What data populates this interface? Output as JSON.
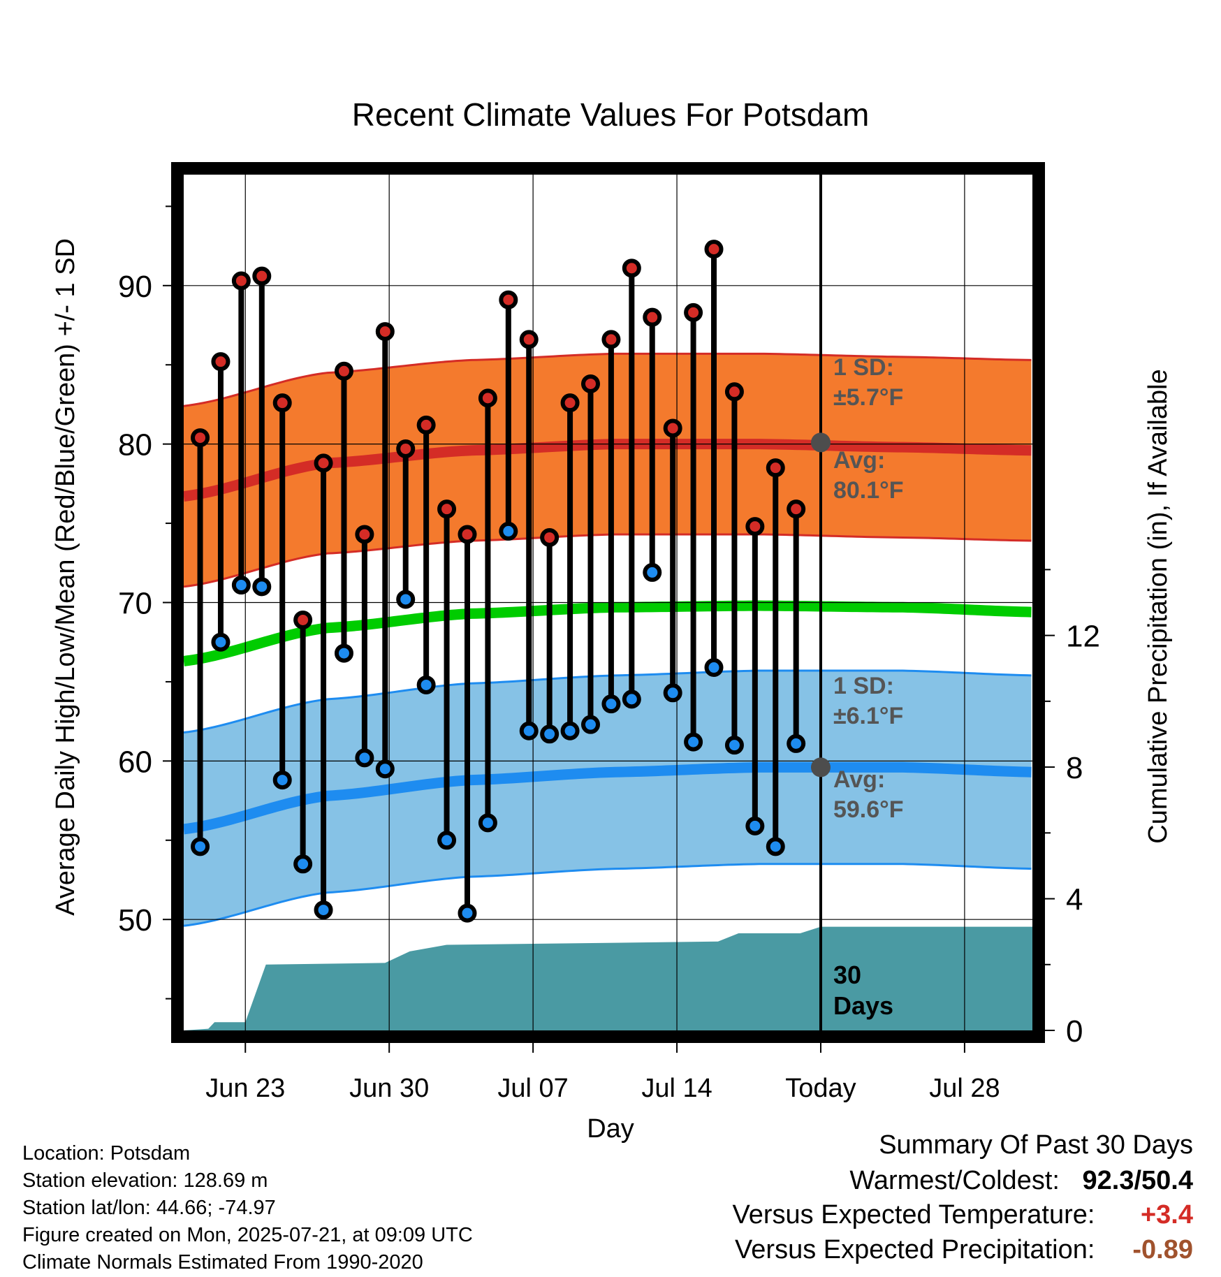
{
  "chart_data": {
    "type": "line",
    "title": "Recent Climate Values For Potsdam",
    "xlabel": "Day",
    "ylabel": "Average Daily High/Low/Mean (Red/Blue/Green) +/- 1 SD",
    "y2label": "Cumulative Precipitation (in), If Available",
    "ylim": [
      43,
      97
    ],
    "y2lim": [
      0,
      26
    ],
    "y_ticks": [
      50,
      60,
      70,
      80,
      90
    ],
    "y2_ticks": [
      0,
      4,
      8,
      12
    ],
    "x_tick_labels": [
      "Jun 23",
      "Jun 30",
      "Jul 07",
      "Jul 14",
      "Today",
      "Jul 28"
    ],
    "x_tick_days": [
      3,
      10,
      17,
      24,
      31,
      38
    ],
    "x_range_days": [
      0,
      41.3
    ],
    "grid": true,
    "days": [
      "Jun 21",
      "Jun 22",
      "Jun 23",
      "Jun 24",
      "Jun 25",
      "Jun 26",
      "Jun 27",
      "Jun 28",
      "Jun 29",
      "Jun 30",
      "Jul 01",
      "Jul 02",
      "Jul 03",
      "Jul 04",
      "Jul 05",
      "Jul 06",
      "Jul 07",
      "Jul 08",
      "Jul 09",
      "Jul 10",
      "Jul 11",
      "Jul 12",
      "Jul 13",
      "Jul 14",
      "Jul 15",
      "Jul 16",
      "Jul 17",
      "Jul 18",
      "Jul 19",
      "Jul 20"
    ],
    "daily_high": [
      80.4,
      85.2,
      90.3,
      90.6,
      82.6,
      68.9,
      78.8,
      84.6,
      74.3,
      87.1,
      79.7,
      81.2,
      75.9,
      74.3,
      82.9,
      89.1,
      86.6,
      74.1,
      82.6,
      83.8,
      86.6,
      91.1,
      88.0,
      81.0,
      88.3,
      92.3,
      83.3,
      74.8,
      78.5,
      75.9
    ],
    "daily_low": [
      54.6,
      67.5,
      71.1,
      71.0,
      58.8,
      53.5,
      50.6,
      66.8,
      60.2,
      59.5,
      70.2,
      64.8,
      55.0,
      50.4,
      56.1,
      74.5,
      61.9,
      61.7,
      61.9,
      62.3,
      63.6,
      63.9,
      71.9,
      64.3,
      61.2,
      65.9,
      61.0,
      55.9,
      54.6,
      61.1
    ],
    "normal_high_mean": [
      {
        "day": 0,
        "value": 76.7
      },
      {
        "day": 7,
        "value": 78.8
      },
      {
        "day": 14,
        "value": 79.6
      },
      {
        "day": 21,
        "value": 80.0
      },
      {
        "day": 28,
        "value": 80.0
      },
      {
        "day": 35,
        "value": 79.8
      },
      {
        "day": 41.3,
        "value": 79.6
      }
    ],
    "normal_high_sd": 5.7,
    "normal_low_mean": [
      {
        "day": 0,
        "value": 55.7
      },
      {
        "day": 7,
        "value": 57.8
      },
      {
        "day": 14,
        "value": 58.8
      },
      {
        "day": 21,
        "value": 59.3
      },
      {
        "day": 28,
        "value": 59.6
      },
      {
        "day": 35,
        "value": 59.6
      },
      {
        "day": 41.3,
        "value": 59.3
      }
    ],
    "normal_low_sd": 6.1,
    "normal_mean": [
      {
        "day": 0,
        "value": 66.3
      },
      {
        "day": 7,
        "value": 68.4
      },
      {
        "day": 14,
        "value": 69.3
      },
      {
        "day": 21,
        "value": 69.7
      },
      {
        "day": 28,
        "value": 69.8
      },
      {
        "day": 35,
        "value": 69.7
      },
      {
        "day": 41.3,
        "value": 69.4
      }
    ],
    "cumulative_precip": [
      {
        "day": 0,
        "value": 0.0
      },
      {
        "day": 1.2,
        "value": 0.05
      },
      {
        "day": 1.5,
        "value": 0.25
      },
      {
        "day": 3.0,
        "value": 0.25
      },
      {
        "day": 4.0,
        "value": 2.0
      },
      {
        "day": 9.8,
        "value": 2.05
      },
      {
        "day": 11.0,
        "value": 2.4
      },
      {
        "day": 12.8,
        "value": 2.6
      },
      {
        "day": 26.0,
        "value": 2.7
      },
      {
        "day": 27.0,
        "value": 2.95
      },
      {
        "day": 30.0,
        "value": 2.95
      },
      {
        "day": 31.0,
        "value": 3.15
      },
      {
        "day": 41.3,
        "value": 3.15
      }
    ],
    "colors": {
      "high_band": "#f47a2d",
      "high_line": "#d42c26",
      "low_band": "#86c2e6",
      "low_line": "#1e8cf0",
      "mean_line": "#00cc00",
      "precip": "#4a9aa3",
      "high_dot": "#d42c26",
      "low_dot": "#1e8cf0",
      "today_marker": "#4d4d4d"
    },
    "annotations": {
      "high_sd_label": "1 SD:",
      "high_sd_value": "±5.7°F",
      "high_avg_label": "Avg:",
      "high_avg_value": "80.1°F",
      "low_sd_label": "1 SD:",
      "low_sd_value": "±6.1°F",
      "low_avg_label": "Avg:",
      "low_avg_value": "59.6°F",
      "days_label_1": "30",
      "days_label_2": "Days"
    },
    "today_high_avg": 80.1,
    "today_low_avg": 59.6
  },
  "info": {
    "location": "Location: Potsdam",
    "elevation": "Station elevation: 128.69 m",
    "latlon": "Station lat/lon: 44.66; -74.97",
    "created": "Figure created on Mon, 2025-07-21, at 09:09 UTC",
    "normals": "Climate Normals Estimated From 1990-2020"
  },
  "summary": {
    "title": "Summary Of Past 30 Days",
    "warmest_label": "Warmest/Coldest:",
    "warmest_value": "92.3/50.4",
    "temp_label": "Versus Expected Temperature:",
    "temp_value": "+3.4",
    "temp_color": "#d42c26",
    "precip_label": "Versus Expected Precipitation:",
    "precip_value": "-0.89",
    "precip_color": "#a0522d"
  }
}
